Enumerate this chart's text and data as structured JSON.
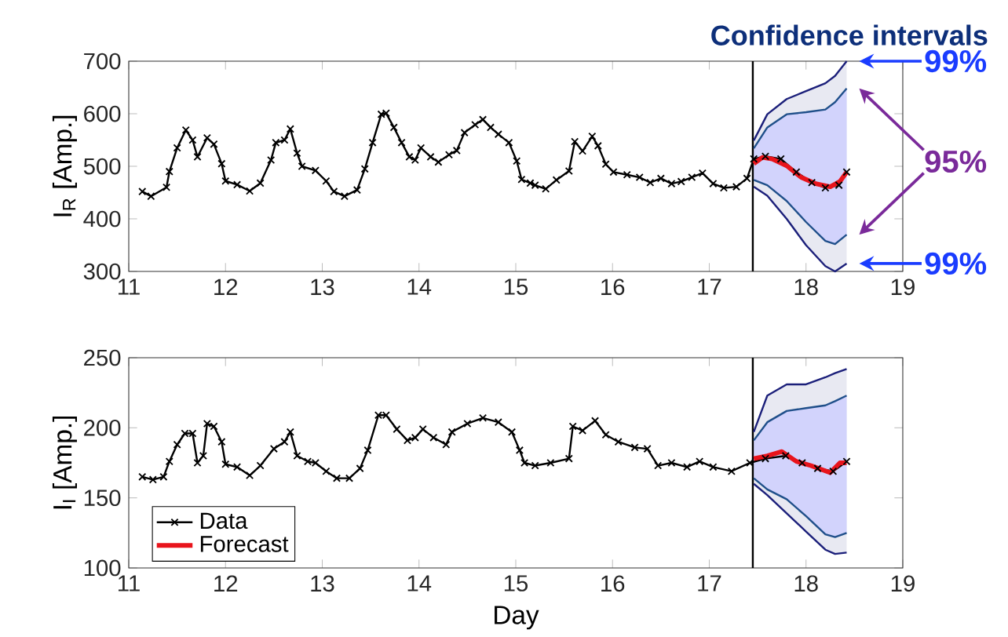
{
  "chart_data": [
    {
      "type": "line",
      "title": "Confidence intervals",
      "ylabel": "I$_{R}$ [Amp.]",
      "xlim": [
        11,
        19
      ],
      "xticks": [
        11,
        12,
        13,
        14,
        15,
        16,
        17,
        18,
        19
      ],
      "ylim": [
        300,
        700
      ],
      "yticks": [
        300,
        400,
        500,
        600,
        700
      ],
      "ref_lines": [
        {
          "axis": "x",
          "value": 17.45,
          "color": "#000000"
        }
      ],
      "annotations": [
        {
          "text": "99%",
          "x": 18.42,
          "y": 700
        },
        "95%",
        {
          "text": "99%",
          "x": 18.42,
          "y": 315
        }
      ],
      "series": [
        {
          "type": "line",
          "color": "#1b1f7a",
          "x": [
            17.46,
            17.6,
            17.8,
            18.0,
            18.2,
            18.3,
            18.42
          ],
          "values": [
            549,
            599,
            628,
            643,
            658,
            672,
            700
          ],
          "lower": [
            461,
            444,
            400,
            350,
            310,
            300,
            315
          ],
          "upper": [
            549,
            599,
            628,
            643,
            658,
            672,
            700
          ]
        },
        {
          "type": "line",
          "color": "#1b1f7a",
          "x": [
            17.46,
            17.6,
            17.8,
            18.0,
            18.2,
            18.3,
            18.42
          ],
          "values": [
            461,
            444,
            400,
            350,
            310,
            300,
            315
          ]
        },
        {
          "type": "line",
          "color": "#1f4f8a",
          "x": [
            17.46,
            17.6,
            17.8,
            18.0,
            18.2,
            18.3,
            18.42
          ],
          "values": [
            534,
            574,
            599,
            603,
            608,
            622,
            648
          ],
          "lower": [
            474,
            464,
            434,
            394,
            358,
            352,
            370
          ],
          "upper": [
            534,
            574,
            599,
            603,
            608,
            622,
            648
          ]
        },
        {
          "type": "line",
          "color": "#1f4f8a",
          "x": [
            17.46,
            17.6,
            17.8,
            18.0,
            18.2,
            18.3,
            18.42
          ],
          "values": [
            474,
            464,
            434,
            394,
            358,
            352,
            370
          ]
        },
        {
          "type": "line",
          "color": "#000000",
          "marker": "cross",
          "x": [
            11.14,
            11.23,
            11.39,
            11.42,
            11.5,
            11.59,
            11.66,
            11.71,
            11.81,
            11.88,
            11.96,
            12.0,
            12.12,
            12.25,
            12.36,
            12.47,
            12.52,
            12.61,
            12.67,
            12.74,
            12.79,
            12.93,
            13.04,
            13.12,
            13.23,
            13.36,
            13.44,
            13.52,
            13.61,
            13.66,
            13.74,
            13.82,
            13.9,
            13.96,
            14.02,
            14.12,
            14.2,
            14.31,
            14.39,
            14.47,
            14.58,
            14.66,
            14.74,
            14.82,
            14.93,
            15.01,
            15.06,
            15.15,
            15.2,
            15.31,
            15.42,
            15.55,
            15.61,
            15.69,
            15.79,
            15.85,
            15.93,
            16.01,
            16.15,
            16.28,
            16.39,
            16.5,
            16.61,
            16.71,
            16.82,
            16.93,
            17.04,
            17.15,
            17.28,
            17.39,
            17.46,
            17.58,
            17.74,
            17.9,
            18.06,
            18.2,
            18.34,
            18.42
          ],
          "values": [
            452,
            443,
            460,
            490,
            535,
            569,
            550,
            518,
            554,
            542,
            505,
            472,
            465,
            453,
            468,
            512,
            545,
            550,
            571,
            525,
            500,
            492,
            472,
            452,
            443,
            455,
            495,
            545,
            599,
            601,
            574,
            545,
            518,
            512,
            535,
            518,
            508,
            522,
            530,
            564,
            579,
            589,
            574,
            561,
            545,
            510,
            475,
            468,
            464,
            457,
            474,
            491,
            547,
            529,
            557,
            539,
            504,
            489,
            484,
            479,
            469,
            477,
            467,
            471,
            479,
            487,
            467,
            459,
            461,
            477,
            514,
            519,
            514,
            489,
            469,
            459,
            464,
            489
          ]
        },
        {
          "type": "line",
          "color": "#e8141c",
          "x": [
            17.46,
            17.55,
            17.65,
            17.8,
            17.95,
            18.1,
            18.25,
            18.35,
            18.42
          ],
          "values": [
            505,
            517,
            514,
            501,
            479,
            467,
            461,
            471,
            489
          ]
        }
      ]
    },
    {
      "type": "line",
      "xlabel": "Day",
      "ylabel": "I$_{I}$ [Amp.]",
      "xlim": [
        11,
        19
      ],
      "xticks": [
        11,
        12,
        13,
        14,
        15,
        16,
        17,
        18,
        19
      ],
      "ylim": [
        100,
        250
      ],
      "yticks": [
        100,
        150,
        200,
        250
      ],
      "legend": "bottom left",
      "ref_lines": [
        {
          "axis": "x",
          "value": 17.45,
          "color": "#000000"
        }
      ],
      "series": [
        {
          "type": "line",
          "color": "#1b1f7a",
          "x": [
            17.46,
            17.6,
            17.8,
            18.0,
            18.2,
            18.3,
            18.42
          ],
          "values": [
            197,
            223,
            231,
            231,
            236,
            239,
            242
          ],
          "lower": [
            160,
            152,
            139,
            126,
            113,
            110,
            111
          ],
          "upper": [
            197,
            223,
            231,
            231,
            236,
            239,
            242
          ]
        },
        {
          "type": "line",
          "color": "#1b1f7a",
          "x": [
            17.46,
            17.6,
            17.8,
            18.0,
            18.2,
            18.3,
            18.42
          ],
          "values": [
            160,
            152,
            139,
            126,
            113,
            110,
            111
          ]
        },
        {
          "type": "line",
          "color": "#1f4f8a",
          "x": [
            17.46,
            17.6,
            17.8,
            18.0,
            18.2,
            18.3,
            18.42
          ],
          "values": [
            191,
            204,
            212,
            214,
            216,
            219,
            223
          ],
          "lower": [
            164,
            156,
            149,
            137,
            124,
            122,
            125
          ],
          "upper": [
            191,
            204,
            212,
            214,
            216,
            219,
            223
          ]
        },
        {
          "type": "line",
          "color": "#1f4f8a",
          "x": [
            17.46,
            17.6,
            17.8,
            18.0,
            18.2,
            18.3,
            18.42
          ],
          "values": [
            164,
            156,
            149,
            137,
            124,
            122,
            125
          ]
        },
        {
          "name": "Data",
          "type": "line",
          "color": "#000000",
          "marker": "cross",
          "x": [
            11.14,
            11.25,
            11.36,
            11.42,
            11.5,
            11.58,
            11.66,
            11.71,
            11.77,
            11.81,
            11.88,
            11.96,
            12.0,
            12.12,
            12.25,
            12.36,
            12.5,
            12.61,
            12.67,
            12.74,
            12.85,
            12.93,
            13.04,
            13.15,
            13.28,
            13.39,
            13.47,
            13.58,
            13.66,
            13.77,
            13.88,
            13.96,
            14.04,
            14.15,
            14.28,
            14.34,
            14.5,
            14.66,
            14.82,
            14.96,
            15.04,
            15.09,
            15.2,
            15.36,
            15.55,
            15.59,
            15.69,
            15.82,
            15.93,
            16.06,
            16.23,
            16.36,
            16.47,
            16.61,
            16.77,
            16.9,
            17.04,
            17.23,
            17.42,
            17.58,
            17.79,
            17.96,
            18.12,
            18.28,
            18.42
          ],
          "values": [
            165,
            163,
            165,
            176,
            188,
            196,
            196,
            175,
            180,
            203,
            201,
            190,
            174,
            172,
            166,
            173,
            185,
            190,
            197,
            180,
            176,
            175,
            169,
            164,
            164,
            171,
            184,
            209,
            209,
            199,
            191,
            193,
            199,
            193,
            188,
            197,
            203,
            207,
            204,
            197,
            184,
            175,
            173,
            175,
            178,
            201,
            198,
            205,
            195,
            190,
            186,
            185,
            173,
            175,
            172,
            176,
            172,
            169,
            175,
            178,
            180,
            175,
            171,
            169,
            176
          ]
        },
        {
          "name": "Forecast",
          "type": "line",
          "color": "#e8141c",
          "x": [
            17.46,
            17.6,
            17.75,
            17.9,
            18.05,
            18.25,
            18.35,
            18.42
          ],
          "values": [
            178,
            180,
            183,
            176,
            173,
            168,
            175,
            175
          ]
        }
      ]
    }
  ]
}
